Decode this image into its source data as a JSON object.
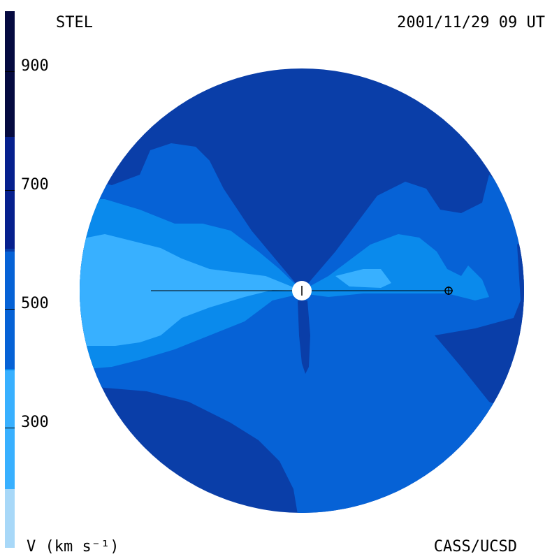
{
  "header": {
    "left": "STEL",
    "right": "2001/11/29 09 UT"
  },
  "footer": {
    "left": "V (km s⁻¹)",
    "right": "CASS/UCSD"
  },
  "colorbar": {
    "ticks": [
      "900",
      "700",
      "500",
      "300"
    ],
    "colors": [
      "#a8d8f8",
      "#38b0ff",
      "#0a8aec",
      "#0662d6",
      "#0a3ea8",
      "#06208e",
      "#051470",
      "#050a40"
    ]
  },
  "map": {
    "colors": {
      "very_slow": "#38b0ff",
      "slow": "#0a8aec",
      "medium": "#0662d6",
      "fast": "#0a3ea8"
    },
    "sun_icon": "sun-icon",
    "earth_icon": "earth-icon"
  }
}
